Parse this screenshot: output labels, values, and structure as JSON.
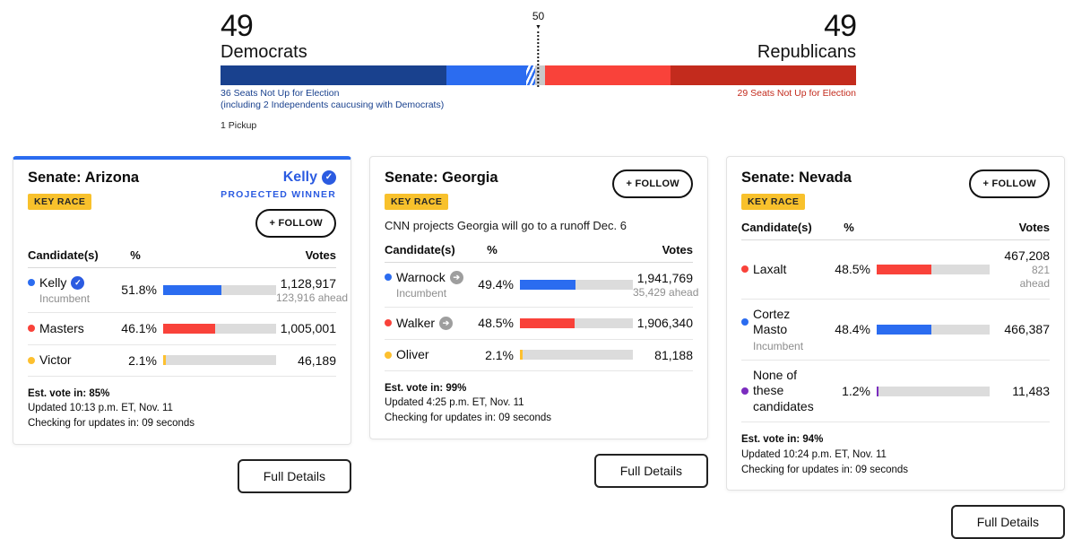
{
  "colors": {
    "dem_navy": "#19418e",
    "dem_blue": "#2b6cf0",
    "undecided_gray": "#c9c9c9",
    "rep_red": "#f9423a",
    "rep_dark_red": "#c32b1d",
    "other_yellow": "#fdc02f",
    "other_purple": "#7b2cbf",
    "projected_blue": "#2b5be1",
    "key_race_yellow": "#f8c12c"
  },
  "balance_of_power": {
    "majority_label": "50",
    "left": {
      "count": "49",
      "party": "Democrats",
      "seats_note": "36 Seats Not Up for Election",
      "independents_note": "(including 2 Independents caucusing with Democrats)",
      "pickup_note": "1 Pickup"
    },
    "right": {
      "count": "49",
      "party": "Republicans",
      "seats_note": "29 Seats Not Up for Election"
    },
    "segments": [
      {
        "name": "dem-holdover",
        "width": "35.5%",
        "color": "#19418e"
      },
      {
        "name": "dem-won",
        "width": "12.6%",
        "color": "#2b6cf0"
      },
      {
        "name": "dem-leading-hatched",
        "width": "1.4%",
        "color": "#2b6cf0"
      },
      {
        "name": "undecided",
        "width": "1.6%",
        "color": "#c9c9c9"
      },
      {
        "name": "rep-won",
        "width": "19.7%",
        "color": "#f9423a"
      },
      {
        "name": "rep-holdover",
        "width": "29.2%",
        "color": "#c32b1d"
      }
    ]
  },
  "cards": [
    {
      "title": "Senate: Arizona",
      "key_race_label": "KEY RACE",
      "winner_name": "Kelly",
      "winner_label": "PROJECTED WINNER",
      "follow_label": "+ FOLLOW",
      "columns": {
        "candidates": "Candidate(s)",
        "percent": "%",
        "votes": "Votes"
      },
      "rows": [
        {
          "name": "Kelly",
          "subtitle": "Incumbent",
          "color": "#2b6cf0",
          "pct": "51.8%",
          "votes": "1,128,917",
          "ahead": "123,916 ahead"
        },
        {
          "name": "Masters",
          "color": "#f9423a",
          "pct": "46.1%",
          "votes": "1,005,001"
        },
        {
          "name": "Victor",
          "color": "#fdc02f",
          "pct": "2.1%",
          "votes": "46,189"
        }
      ],
      "est_vote": "Est. vote in: 85%",
      "updated": "Updated 10:13 p.m. ET, Nov. 11",
      "checking": "Checking for updates in: 09 seconds",
      "full_details_label": "Full Details"
    },
    {
      "title": "Senate: Georgia",
      "key_race_label": "KEY RACE",
      "subtitle": "CNN projects Georgia will go to a runoff Dec. 6",
      "follow_label": "+ FOLLOW",
      "columns": {
        "candidates": "Candidate(s)",
        "percent": "%",
        "votes": "Votes"
      },
      "rows": [
        {
          "name": "Warnock",
          "subtitle": "Incumbent",
          "color": "#2b6cf0",
          "pct": "49.4%",
          "votes": "1,941,769",
          "ahead": "35,429 ahead"
        },
        {
          "name": "Walker",
          "color": "#f9423a",
          "pct": "48.5%",
          "votes": "1,906,340"
        },
        {
          "name": "Oliver",
          "color": "#fdc02f",
          "pct": "2.1%",
          "votes": "81,188"
        }
      ],
      "est_vote": "Est. vote in: 99%",
      "updated": "Updated 4:25 p.m. ET, Nov. 11",
      "checking": "Checking for updates in: 09 seconds",
      "full_details_label": "Full Details"
    },
    {
      "title": "Senate: Nevada",
      "key_race_label": "KEY RACE",
      "follow_label": "+ FOLLOW",
      "columns": {
        "candidates": "Candidate(s)",
        "percent": "%",
        "votes": "Votes"
      },
      "rows": [
        {
          "name": "Laxalt",
          "color": "#f9423a",
          "pct": "48.5%",
          "votes": "467,208",
          "ahead_line1": "821",
          "ahead_line2": "ahead"
        },
        {
          "name": "Cortez Masto",
          "subtitle": "Incumbent",
          "color": "#2b6cf0",
          "pct": "48.4%",
          "votes": "466,387"
        },
        {
          "name": "None of these candidates",
          "color": "#7b2cbf",
          "pct": "1.2%",
          "votes": "11,483"
        }
      ],
      "est_vote": "Est. vote in: 94%",
      "updated": "Updated 10:24 p.m. ET, Nov. 11",
      "checking": "Checking for updates in: 09 seconds",
      "full_details_label": "Full Details"
    }
  ]
}
